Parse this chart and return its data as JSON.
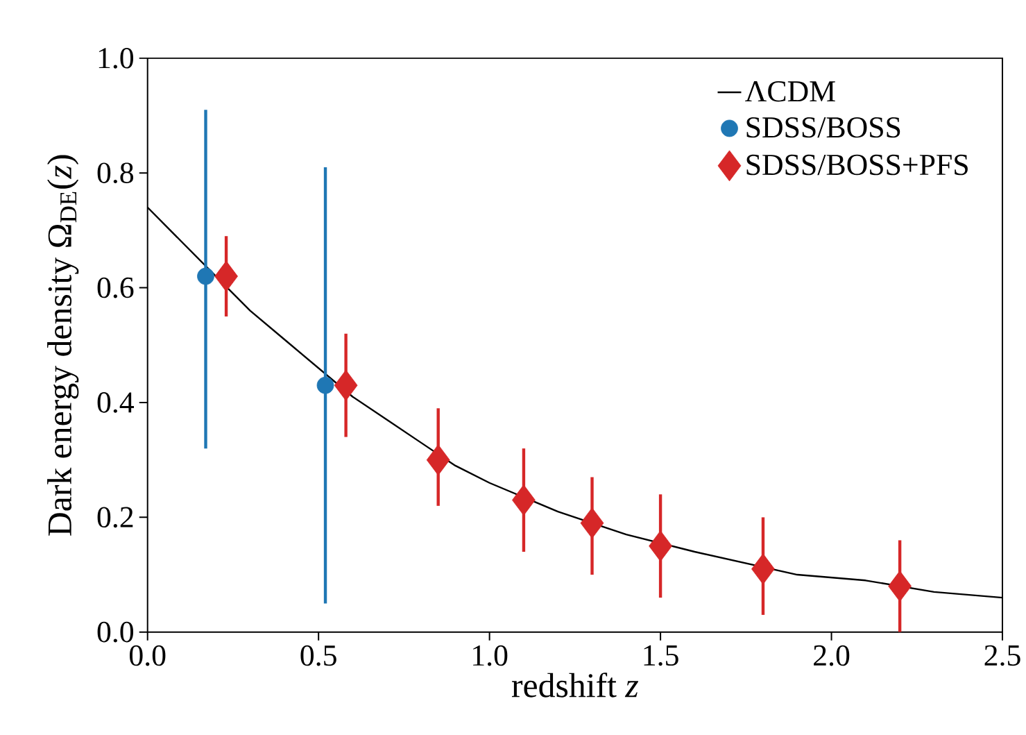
{
  "chart_data": {
    "type": "scatter",
    "xlabel": "redshift *z*",
    "ylabel": "Dark energy density Ω$_{DE}$(*z*)",
    "xlim": [
      0,
      2.5
    ],
    "ylim": [
      0,
      1
    ],
    "xticks": [
      {
        "value": 0,
        "label": "0.0"
      },
      {
        "value": 0.5,
        "label": "0.5"
      },
      {
        "value": 1,
        "label": "1.0"
      },
      {
        "value": 1.5,
        "label": "1.5"
      },
      {
        "value": 2,
        "label": "2.0"
      },
      {
        "value": 2.5,
        "label": "2.5"
      }
    ],
    "yticks": [
      {
        "value": 0,
        "label": "0.0"
      },
      {
        "value": 0.2,
        "label": "0.2"
      },
      {
        "value": 0.4,
        "label": "0.4"
      },
      {
        "value": 0.6,
        "label": "0.6"
      },
      {
        "value": 0.8,
        "label": "0.8"
      },
      {
        "value": 1,
        "label": "1.0"
      }
    ],
    "legend": "top right",
    "series": [
      {
        "name": "ΛCDM",
        "type": "line",
        "color": "#000000",
        "marker": "none",
        "line_style": "solid",
        "x": [
          0,
          0.1,
          0.2,
          0.3,
          0.4,
          0.5,
          0.6,
          0.7,
          0.8,
          0.9,
          1.0,
          1.2,
          1.4,
          1.6,
          1.9,
          2.1,
          2.3,
          2.5
        ],
        "values": [
          0.74,
          0.68,
          0.62,
          0.56,
          0.51,
          0.46,
          0.41,
          0.37,
          0.33,
          0.29,
          0.26,
          0.21,
          0.17,
          0.14,
          0.1,
          0.09,
          0.07,
          0.06
        ]
      },
      {
        "name": "SDSS/BOSS",
        "color": "#1f77b4",
        "marker": "circle",
        "x": [
          0.17,
          0.52
        ],
        "values": [
          0.62,
          0.43
        ],
        "errors": [
          [
            0.32,
            0.91
          ],
          [
            0.05,
            0.81
          ]
        ]
      },
      {
        "name": "SDSS/BOSS+PFS",
        "color": "#d62728",
        "marker": "diamond",
        "x": [
          0.23,
          0.58,
          0.85,
          1.1,
          1.3,
          1.5,
          1.8,
          2.2
        ],
        "values": [
          0.62,
          0.43,
          0.3,
          0.23,
          0.19,
          0.15,
          0.11,
          0.08
        ],
        "errors": [
          [
            0.55,
            0.69
          ],
          [
            0.34,
            0.52
          ],
          [
            0.22,
            0.39
          ],
          [
            0.14,
            0.32
          ],
          [
            0.1,
            0.27
          ],
          [
            0.06,
            0.24
          ],
          [
            0.03,
            0.2
          ],
          [
            0.0,
            0.16
          ]
        ]
      }
    ]
  }
}
